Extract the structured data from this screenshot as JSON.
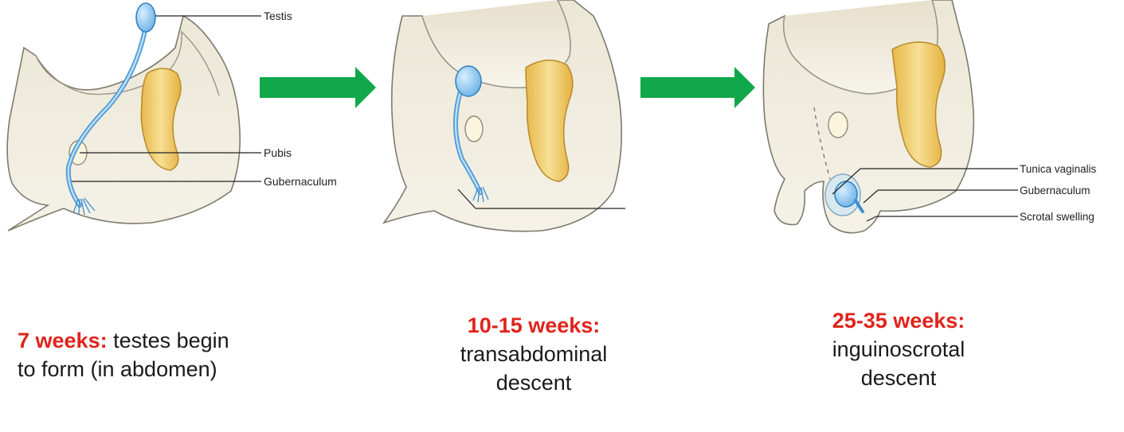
{
  "labels": {
    "testis": "Testis",
    "pubis": "Pubis",
    "gubernaculum_1": "Gubernaculum",
    "tunica_vaginalis": "Tunica vaginalis",
    "gubernaculum_3": "Gubernaculum",
    "scrotal_swelling": "Scrotal swelling"
  },
  "captions": {
    "stage1": {
      "weeks": "7 weeks:",
      "line1": "testes begin",
      "line2": "to form (in abdomen)"
    },
    "stage2": {
      "weeks": "10-15 weeks:",
      "line1": "transabdominal",
      "line2": "descent"
    },
    "stage3": {
      "weeks": "25-35 weeks:",
      "line1": "inguinoscrotal",
      "line2": "descent"
    }
  },
  "colors": {
    "arrow": "#10a84a",
    "stage_text": "#e0241b",
    "body_fill": "#f1ede0",
    "testis_blue": "#8fc6ec",
    "pubis_yellow": "#f2d27a"
  }
}
